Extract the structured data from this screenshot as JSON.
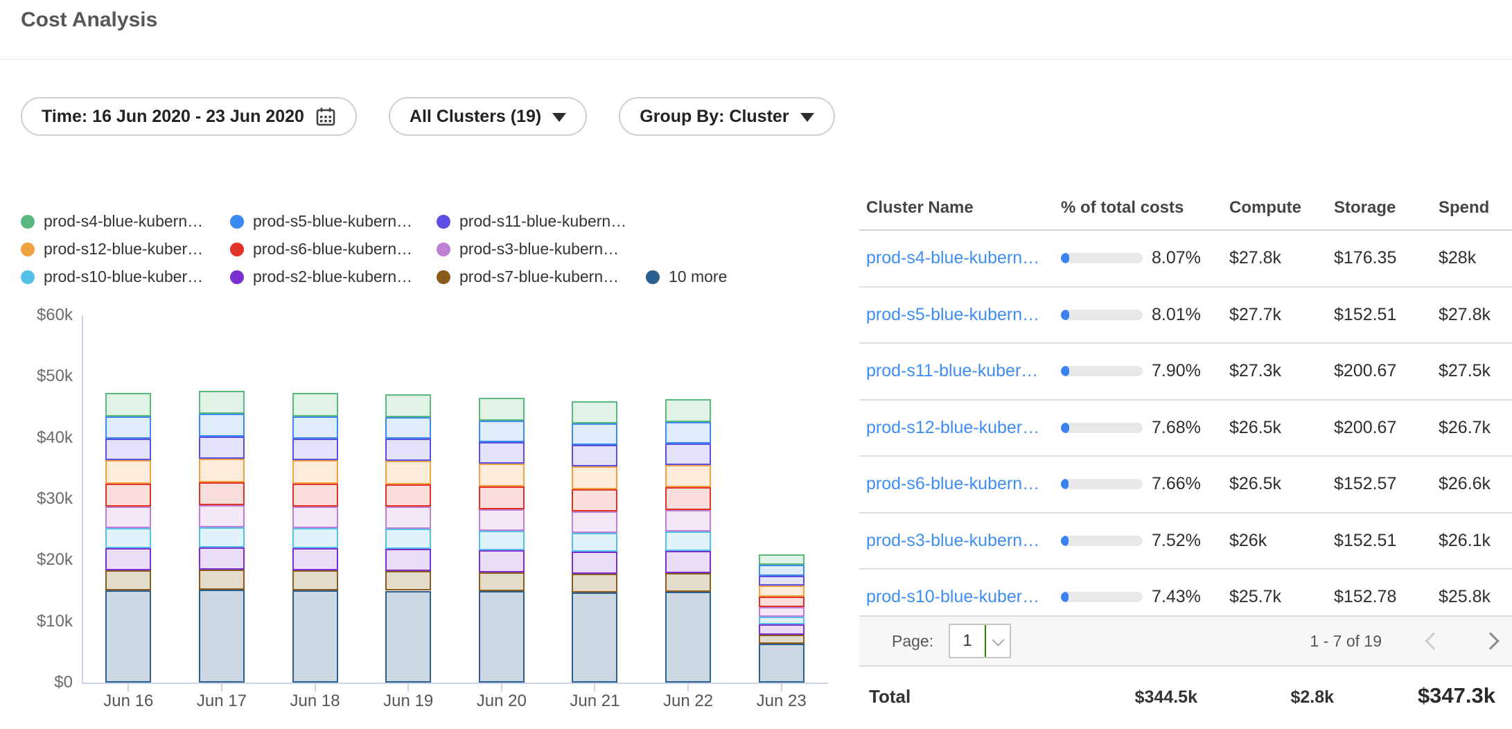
{
  "page": {
    "title": "Cost Analysis"
  },
  "filters": {
    "time": {
      "label": "Time: 16 Jun 2020 - 23 Jun 2020"
    },
    "clusters": {
      "label": "All Clusters (19)"
    },
    "group_by": {
      "label": "Group By: Cluster"
    }
  },
  "colors": {
    "link": "#3e8df2",
    "progress_fill": "#3b82f0",
    "progress_track": "#e8e8e8",
    "axis": "#c9d2e8",
    "select_accent_green": "#2f8400"
  },
  "legend": {
    "items": [
      {
        "label": "prod-s4-blue-kubern…",
        "color": "#57b97c",
        "row": 0,
        "col": 0
      },
      {
        "label": "prod-s5-blue-kubern…",
        "color": "#3b8af0",
        "row": 0,
        "col": 1
      },
      {
        "label": "prod-s11-blue-kubern…",
        "color": "#5a4fe0",
        "row": 0,
        "col": 2
      },
      {
        "label": "prod-s12-blue-kuber…",
        "color": "#f0a242",
        "row": 1,
        "col": 0
      },
      {
        "label": "prod-s6-blue-kubern…",
        "color": "#e23228",
        "row": 1,
        "col": 1
      },
      {
        "label": "prod-s3-blue-kubern…",
        "color": "#bd7ed6",
        "row": 1,
        "col": 2
      },
      {
        "label": "prod-s10-blue-kuber…",
        "color": "#56bfe8",
        "row": 2,
        "col": 0
      },
      {
        "label": "prod-s2-blue-kubern…",
        "color": "#7c2fd0",
        "row": 2,
        "col": 1
      },
      {
        "label": "prod-s7-blue-kubern…",
        "color": "#8b5a1d",
        "row": 2,
        "col": 2
      },
      {
        "label": "10 more",
        "color": "#2b5f8e",
        "row": 2,
        "col": 3
      }
    ]
  },
  "chart_data": {
    "type": "bar",
    "stacked": true,
    "title": "Daily cluster costs",
    "categories": [
      "Jun 16",
      "Jun 17",
      "Jun 18",
      "Jun 19",
      "Jun 20",
      "Jun 21",
      "Jun 22",
      "Jun 23"
    ],
    "unit": "thousand USD",
    "ylim": [
      0,
      60
    ],
    "y_ticks": [
      "$0",
      "$10k",
      "$20k",
      "$30k",
      "$40k",
      "$50k",
      "$60k"
    ],
    "grid": false,
    "legend_position": "top",
    "series": [
      {
        "name": "10 more",
        "color": "#2b5f8e",
        "fill": "#ccd8e3",
        "values": [
          15.1,
          15.2,
          15.1,
          15.0,
          14.9,
          14.7,
          14.8,
          6.3
        ]
      },
      {
        "name": "prod-s7-blue-kubern…",
        "color": "#8b5a1d",
        "fill": "#e4dccb",
        "values": [
          3.2,
          3.2,
          3.2,
          3.2,
          3.1,
          3.1,
          3.1,
          1.5
        ]
      },
      {
        "name": "prod-s2-blue-kubern…",
        "color": "#7c2fd0",
        "fill": "#e9ddf7",
        "values": [
          3.7,
          3.7,
          3.7,
          3.7,
          3.6,
          3.6,
          3.6,
          1.7
        ]
      },
      {
        "name": "prod-s10-blue-kuber…",
        "color": "#56bfe8",
        "fill": "#e0f2fa",
        "values": [
          3.2,
          3.3,
          3.2,
          3.2,
          3.2,
          3.1,
          3.2,
          1.3
        ]
      },
      {
        "name": "prod-s3-blue-kubern…",
        "color": "#bd7ed6",
        "fill": "#f3e8f8",
        "values": [
          3.6,
          3.6,
          3.6,
          3.6,
          3.5,
          3.5,
          3.5,
          1.5
        ]
      },
      {
        "name": "prod-s6-blue-kubern…",
        "color": "#e23228",
        "fill": "#fadedc",
        "values": [
          3.7,
          3.7,
          3.7,
          3.7,
          3.7,
          3.6,
          3.7,
          1.7
        ]
      },
      {
        "name": "prod-s12-blue-kuber…",
        "color": "#f0a242",
        "fill": "#fcecd9",
        "values": [
          3.8,
          3.9,
          3.8,
          3.8,
          3.8,
          3.7,
          3.7,
          1.8
        ]
      },
      {
        "name": "prod-s11-blue-kubern…",
        "color": "#5a4fe0",
        "fill": "#e4e2fa",
        "values": [
          3.6,
          3.6,
          3.6,
          3.6,
          3.5,
          3.5,
          3.5,
          1.6
        ]
      },
      {
        "name": "prod-s5-blue-kubern…",
        "color": "#3b8af0",
        "fill": "#dfecfc",
        "values": [
          3.6,
          3.7,
          3.6,
          3.6,
          3.5,
          3.5,
          3.5,
          1.8
        ]
      },
      {
        "name": "prod-s4-blue-kubern…",
        "color": "#57b97c",
        "fill": "#e1f2e7",
        "values": [
          3.8,
          3.8,
          3.8,
          3.7,
          3.7,
          3.7,
          3.7,
          1.7
        ]
      }
    ]
  },
  "table": {
    "columns": [
      "Cluster Name",
      "% of total costs",
      "Compute",
      "Storage",
      "Spend"
    ],
    "rows": [
      {
        "name": "prod-s4-blue-kubern…",
        "pct": "8.07%",
        "pct_value": 8.07,
        "compute": "$27.8k",
        "storage": "$176.35",
        "spend": "$28k"
      },
      {
        "name": "prod-s5-blue-kubern…",
        "pct": "8.01%",
        "pct_value": 8.01,
        "compute": "$27.7k",
        "storage": "$152.51",
        "spend": "$27.8k"
      },
      {
        "name": "prod-s11-blue-kuber…",
        "pct": "7.90%",
        "pct_value": 7.9,
        "compute": "$27.3k",
        "storage": "$200.67",
        "spend": "$27.5k"
      },
      {
        "name": "prod-s12-blue-kuber…",
        "pct": "7.68%",
        "pct_value": 7.68,
        "compute": "$26.5k",
        "storage": "$200.67",
        "spend": "$26.7k"
      },
      {
        "name": "prod-s6-blue-kubern…",
        "pct": "7.66%",
        "pct_value": 7.66,
        "compute": "$26.5k",
        "storage": "$152.57",
        "spend": "$26.6k"
      },
      {
        "name": "prod-s3-blue-kubern…",
        "pct": "7.52%",
        "pct_value": 7.52,
        "compute": "$26k",
        "storage": "$152.51",
        "spend": "$26.1k"
      },
      {
        "name": "prod-s10-blue-kuber…",
        "pct": "7.43%",
        "pct_value": 7.43,
        "compute": "$25.7k",
        "storage": "$152.78",
        "spend": "$25.8k"
      }
    ],
    "pagination": {
      "page_label": "Page:",
      "page": "1",
      "range": "1 - 7 of 19"
    },
    "total": {
      "label": "Total",
      "compute": "$344.5k",
      "storage": "$2.8k",
      "spend": "$347.3k"
    }
  }
}
